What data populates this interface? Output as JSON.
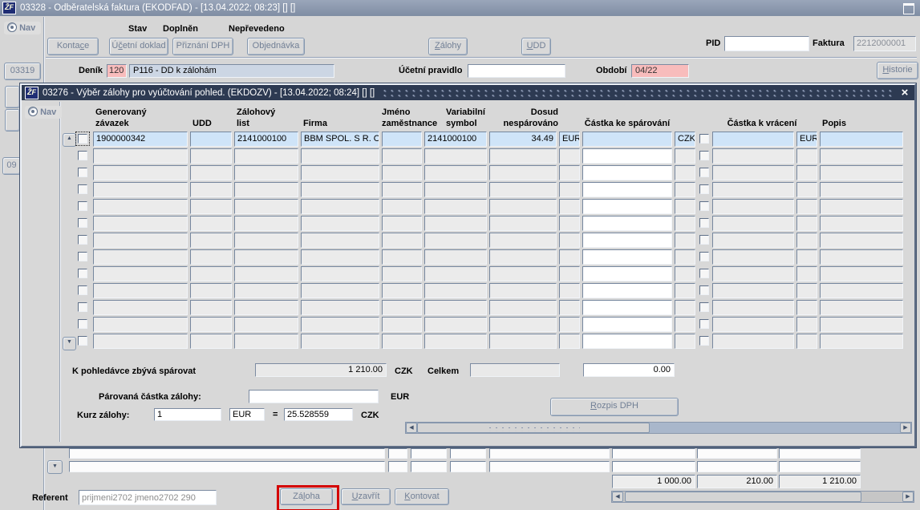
{
  "icons": {
    "logo": "ŽF",
    "close": "×",
    "up": "▲",
    "down": "▼",
    "left": "◀",
    "right": "▶"
  },
  "window": {
    "title": "03328 - Odběratelská faktura (EKODFAD) - [13.04.2022; 08:23]  []  []",
    "nav": "Nav",
    "tab_03319": "03319",
    "frag_09": "09",
    "stav_label": "Stav",
    "stav_value": "Doplněn",
    "nepreveden": "Nepřevedeno",
    "btn_kontace": "Kontace",
    "btn_ucetni_doklad": "Účetní doklad",
    "btn_priznani_dph": "Přiznání DPH",
    "btn_objednavka": "Objednávka",
    "btn_zalohy": "Zálohy",
    "btn_udd": "UDD",
    "pid_label": "PID",
    "faktura_label": "Faktura",
    "faktura_value": "2212000001",
    "denik_label": "Deník",
    "denik_code": "120",
    "denik_name": "P116 - DD k zálohám",
    "ucetni_pravidlo_label": "Účetní pravidlo",
    "obdobi_label": "Období",
    "obdobi_value": "04/22",
    "btn_historie": "Historie",
    "total_base": "1 000.00",
    "total_vat": "210.00",
    "total_sum": "1 210.00",
    "referent_label": "Referent",
    "referent_value": "prijmeni2702 jmeno2702 290",
    "btn_zaloha": "Záloha",
    "btn_uzavrit": "Uzavřít",
    "btn_kontovat": "Kontovat"
  },
  "dialog": {
    "title": "03276 - Výběr zálohy pro vyúčtování pohled. (EKDOZV) - [13.04.2022; 08:24]  []  []",
    "nav": "Nav",
    "headers": {
      "zavazek": "Generovaný\nzávazek",
      "udd": "UDD",
      "list": "Zálohový\nlist",
      "firma": "Firma",
      "jmeno": "Jméno\nzaměstnance",
      "vs": "Variabilní\nsymbol",
      "dosud": "Dosud\nnespárováno",
      "castka": "Částka ke spárování",
      "vraceni": "Částka k vrácení",
      "popis": "Popis"
    },
    "rows": [
      {
        "sel": true,
        "zavazek": "1900000342",
        "udd": "",
        "list": "2141000100",
        "firma": "BBM SPOL. S R. O.",
        "jmeno": "",
        "vs": "2141000100",
        "dosud": "34.49",
        "cur1": "EUR",
        "castka": "",
        "cur2": "CZK",
        "vraceni": "",
        "cur3": "EUR",
        "popis": ""
      },
      {},
      {},
      {},
      {},
      {},
      {},
      {},
      {},
      {},
      {},
      {},
      {}
    ],
    "remaining_label": "K pohledávce zbývá spárovat",
    "remaining_value": "1 210.00",
    "remaining_cur": "CZK",
    "celkem_label": "Celkem",
    "celkem_value": "",
    "celkem_total": "0.00",
    "parovana_label": "Párovaná částka zálohy:",
    "parovana_cur": "EUR",
    "kurz_label": "Kurz zálohy:",
    "kurz_value": "1",
    "kurz_cur_from": "EUR",
    "equals": "=",
    "kurz_rate": "25.528559",
    "kurz_cur_to": "CZK",
    "btn_rozpis": "Rozpis DPH"
  }
}
